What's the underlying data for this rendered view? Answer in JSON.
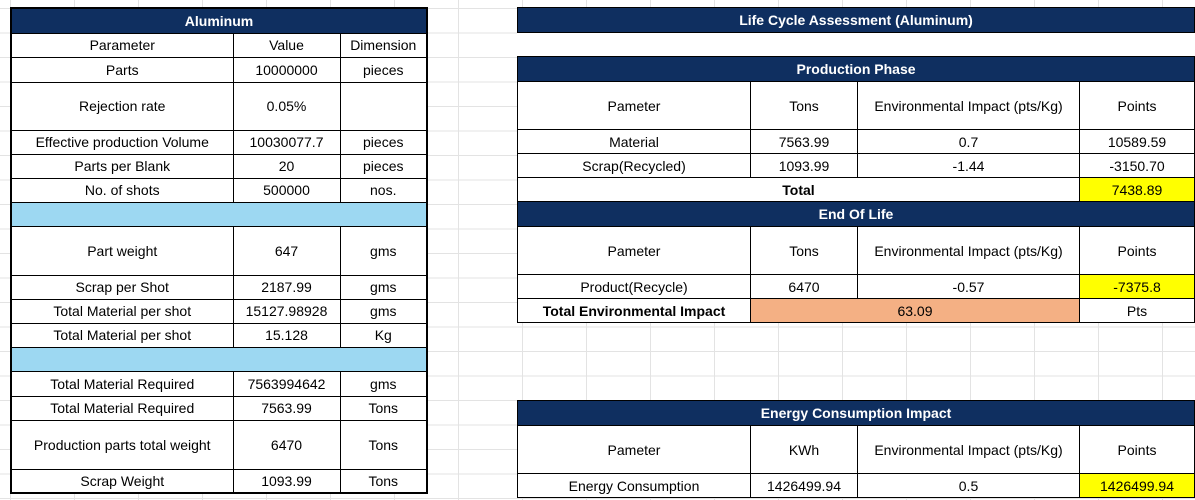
{
  "aluminum": {
    "title": "Aluminum",
    "headers": [
      "Parameter",
      "Value",
      "Dimension"
    ],
    "rows1": [
      {
        "param": "Parts",
        "value": "10000000",
        "dim": "pieces"
      },
      {
        "param": "Rejection rate",
        "value": "0.05%",
        "dim": ""
      },
      {
        "param": "Effective production Volume",
        "value": "10030077.7",
        "dim": "pieces"
      },
      {
        "param": "Parts per Blank",
        "value": "20",
        "dim": "pieces"
      },
      {
        "param": "No. of shots",
        "value": "500000",
        "dim": "nos."
      }
    ],
    "rows2": [
      {
        "param": "Part weight",
        "value": "647",
        "dim": "gms"
      },
      {
        "param": "Scrap per Shot",
        "value": "2187.99",
        "dim": "gms"
      },
      {
        "param": "Total Material per shot",
        "value": "15127.98928",
        "dim": "gms"
      },
      {
        "param": "Total Material per shot",
        "value": "15.128",
        "dim": "Kg"
      }
    ],
    "rows3": [
      {
        "param": "Total Material Required",
        "value": "7563994642",
        "dim": "gms"
      },
      {
        "param": "Total Material Required",
        "value": "7563.99",
        "dim": "Tons"
      },
      {
        "param": "Production parts total weight",
        "value": "6470",
        "dim": "Tons"
      },
      {
        "param": "Scrap Weight",
        "value": "1093.99",
        "dim": "Tons"
      }
    ]
  },
  "lca": {
    "title": "Life Cycle Assessment (Aluminum)",
    "production": {
      "title": "Production Phase",
      "headers": [
        "Pameter",
        "Tons",
        "Environmental Impact (pts/Kg)",
        "Points"
      ],
      "rows": [
        {
          "param": "Material",
          "tons": "7563.99",
          "impact": "0.7",
          "points": "10589.59"
        },
        {
          "param": "Scrap(Recycled)",
          "tons": "1093.99",
          "impact": "-1.44",
          "points": "-3150.70"
        }
      ],
      "total_label": "Total",
      "total_value": "7438.89"
    },
    "eol": {
      "title": "End Of Life",
      "headers": [
        "Pameter",
        "Tons",
        "Environmental Impact (pts/Kg)",
        "Points"
      ],
      "row": {
        "param": "Product(Recycle)",
        "tons": "6470",
        "impact": "-0.57",
        "points": "-7375.8"
      },
      "total_label": "Total Environmental Impact",
      "total_value": "63.09",
      "total_unit": "Pts"
    }
  },
  "energy": {
    "title": "Energy Consumption Impact",
    "headers": [
      "Pameter",
      "KWh",
      "Environmental Impact (pts/Kg)",
      "Points"
    ],
    "row": {
      "param": "Energy Consumption",
      "kwh": "1426499.94",
      "impact": "0.5",
      "points": "1426499.94"
    }
  },
  "colors": {
    "header_bg": "#0f2f60",
    "band_bg": "#9dd8f2",
    "highlight_yellow": "#ffff00",
    "highlight_orange": "#f4b084"
  }
}
